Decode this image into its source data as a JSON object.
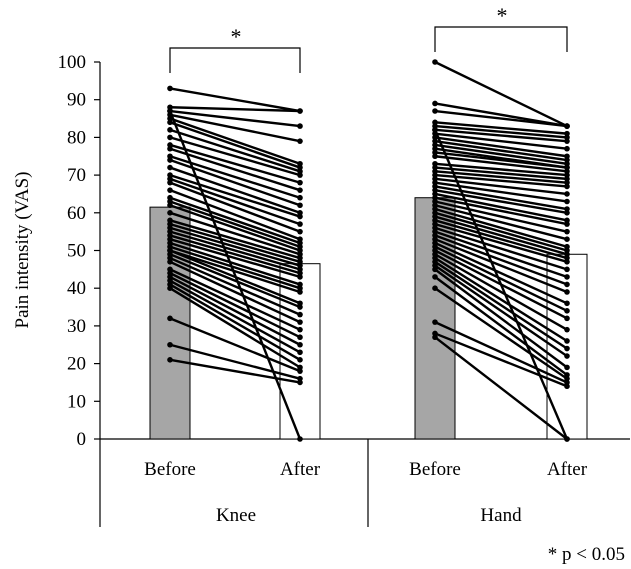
{
  "chart_data": {
    "type": "bar",
    "ylabel": "Pain intensity (VAS)",
    "ylim": [
      0,
      100
    ],
    "yticks": [
      0,
      10,
      20,
      30,
      40,
      50,
      60,
      70,
      80,
      90,
      100
    ],
    "groups": [
      {
        "name": "Knee",
        "categories": [
          "Before",
          "After"
        ],
        "means": [
          61.5,
          46.5
        ],
        "significance": "*",
        "pairs": [
          [
            93,
            87
          ],
          [
            88,
            87
          ],
          [
            87,
            83
          ],
          [
            86,
            79
          ],
          [
            85,
            73
          ],
          [
            84,
            72
          ],
          [
            82,
            71
          ],
          [
            80,
            70
          ],
          [
            78,
            68
          ],
          [
            77,
            66
          ],
          [
            75,
            64
          ],
          [
            74,
            62
          ],
          [
            72,
            60
          ],
          [
            70,
            59
          ],
          [
            69,
            57
          ],
          [
            68,
            55
          ],
          [
            66,
            53
          ],
          [
            64,
            52
          ],
          [
            63,
            51
          ],
          [
            62,
            50
          ],
          [
            60,
            49
          ],
          [
            58,
            48
          ],
          [
            57,
            47
          ],
          [
            56,
            46
          ],
          [
            55,
            45
          ],
          [
            54,
            44
          ],
          [
            53,
            43
          ],
          [
            52,
            41
          ],
          [
            51,
            40
          ],
          [
            50,
            39
          ],
          [
            50,
            36
          ],
          [
            49,
            35
          ],
          [
            48,
            33
          ],
          [
            47,
            31
          ],
          [
            45,
            29
          ],
          [
            44,
            27
          ],
          [
            43,
            25
          ],
          [
            42,
            23
          ],
          [
            41,
            21
          ],
          [
            40,
            19
          ],
          [
            32,
            18
          ],
          [
            25,
            16
          ],
          [
            21,
            15
          ],
          [
            87,
            0
          ]
        ]
      },
      {
        "name": "Hand",
        "categories": [
          "Before",
          "After"
        ],
        "means": [
          64,
          49
        ],
        "significance": "*",
        "pairs": [
          [
            100,
            83
          ],
          [
            89,
            83
          ],
          [
            87,
            83
          ],
          [
            84,
            81
          ],
          [
            83,
            80
          ],
          [
            82,
            79
          ],
          [
            81,
            77
          ],
          [
            80,
            75
          ],
          [
            79,
            74
          ],
          [
            78,
            73
          ],
          [
            77,
            72
          ],
          [
            76,
            72
          ],
          [
            75,
            71
          ],
          [
            73,
            70
          ],
          [
            72,
            69
          ],
          [
            71,
            68
          ],
          [
            70,
            67
          ],
          [
            69,
            65
          ],
          [
            68,
            63
          ],
          [
            67,
            61
          ],
          [
            66,
            60
          ],
          [
            65,
            58
          ],
          [
            64,
            57
          ],
          [
            63,
            55
          ],
          [
            62,
            53
          ],
          [
            61,
            51
          ],
          [
            60,
            50
          ],
          [
            59,
            49
          ],
          [
            58,
            48
          ],
          [
            57,
            47
          ],
          [
            56,
            45
          ],
          [
            55,
            43
          ],
          [
            54,
            41
          ],
          [
            53,
            39
          ],
          [
            52,
            36
          ],
          [
            51,
            34
          ],
          [
            50,
            32
          ],
          [
            49,
            29
          ],
          [
            48,
            26
          ],
          [
            47,
            24
          ],
          [
            46,
            22
          ],
          [
            45,
            19
          ],
          [
            43,
            17
          ],
          [
            40,
            16
          ],
          [
            31,
            15
          ],
          [
            28,
            14
          ],
          [
            27,
            0
          ],
          [
            82,
            0
          ]
        ]
      }
    ],
    "footnote": "* p < 0.05",
    "bar_colors": {
      "Before": "#a6a6a6",
      "After": "#ffffff"
    },
    "line_color": "#000000"
  }
}
